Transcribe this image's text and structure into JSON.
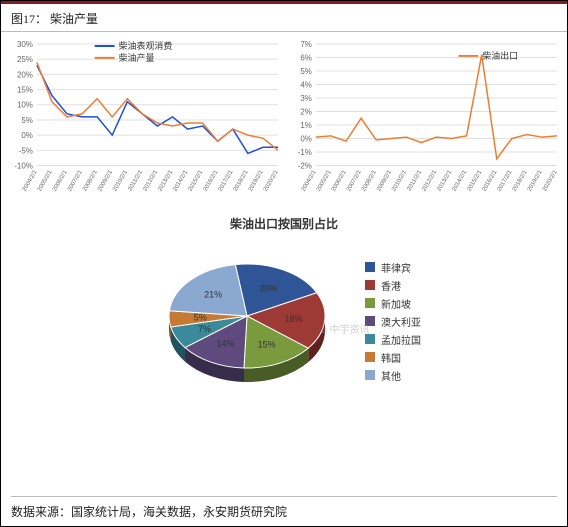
{
  "figure_label": "图17：",
  "figure_title": "柴油产量",
  "footer_text": "数据来源：国家统计局，海关数据，永安期货研究院",
  "watermark": "⌀ 中宇资讯",
  "line_chart_left": {
    "type": "line",
    "xlabels": [
      "2004/2/1",
      "2005/2/1",
      "2006/2/1",
      "2007/2/1",
      "2008/2/1",
      "2009/2/1",
      "2010/2/1",
      "2011/2/1",
      "2012/2/1",
      "2013/2/1",
      "2014/2/1",
      "2015/2/1",
      "2016/2/1",
      "2017/2/1",
      "2018/2/1",
      "2019/2/1",
      "2020/2/1"
    ],
    "ylim": [
      -10,
      30
    ],
    "ytick_step": 5,
    "grid_color": "#e0e0e0",
    "background": "#ffffff",
    "series": [
      {
        "name": "柴油表观消费",
        "color": "#1f4fd6",
        "width": 1.5,
        "values": [
          23,
          13,
          7,
          6,
          6,
          0,
          11,
          7,
          3,
          6,
          2,
          3,
          -2,
          2,
          -6,
          -4,
          -4
        ]
      },
      {
        "name": "柴油产量",
        "color": "#ed7d31",
        "width": 1.5,
        "values": [
          24,
          11,
          6,
          7,
          12,
          6,
          12,
          7,
          4,
          3,
          4,
          4,
          -2,
          2,
          0,
          -1,
          -5
        ]
      }
    ],
    "legend_pos": {
      "x": 90,
      "y": 8
    }
  },
  "line_chart_right": {
    "type": "line",
    "xlabels": [
      "2004/2/1",
      "2005/2/1",
      "2006/2/1",
      "2007/2/1",
      "2008/2/1",
      "2009/2/1",
      "2010/2/1",
      "2011/2/1",
      "2012/2/1",
      "2013/2/1",
      "2014/2/1",
      "2015/2/1",
      "2016/2/1",
      "2017/2/1",
      "2018/2/1",
      "2019/2/1",
      "2020/2/1"
    ],
    "ylim": [
      -2,
      7
    ],
    "ytick_step": 1,
    "grid_color": "#e0e0e0",
    "background": "#ffffff",
    "series": [
      {
        "name": "柴油出口",
        "color": "#ed7d31",
        "width": 1.5,
        "values": [
          0.1,
          0.2,
          -0.2,
          1.5,
          -0.1,
          0.0,
          0.1,
          -0.3,
          0.1,
          0.0,
          0.2,
          6.2,
          -1.5,
          0.0,
          0.3,
          0.1,
          0.2
        ]
      }
    ],
    "legend_pos": {
      "x": 175,
      "y": 18
    }
  },
  "pie_chart": {
    "type": "pie",
    "title": "柴油出口按国别占比",
    "background": "#ffffff",
    "label_fontsize": 9,
    "label_color": "#333333",
    "slices": [
      {
        "name": "菲律宾",
        "value": 20,
        "color": "#2f5597"
      },
      {
        "name": "香港",
        "value": 18,
        "color": "#9e3a36"
      },
      {
        "name": "新加坡",
        "value": 15,
        "color": "#7a9a3e"
      },
      {
        "name": "澳大利亚",
        "value": 14,
        "color": "#5e4a7d"
      },
      {
        "name": "孟加拉国",
        "value": 7,
        "color": "#3a8a9b"
      },
      {
        "name": "韩国",
        "value": 5,
        "color": "#c77a34"
      },
      {
        "name": "其他",
        "value": 21,
        "color": "#8aa8d0"
      }
    ]
  }
}
